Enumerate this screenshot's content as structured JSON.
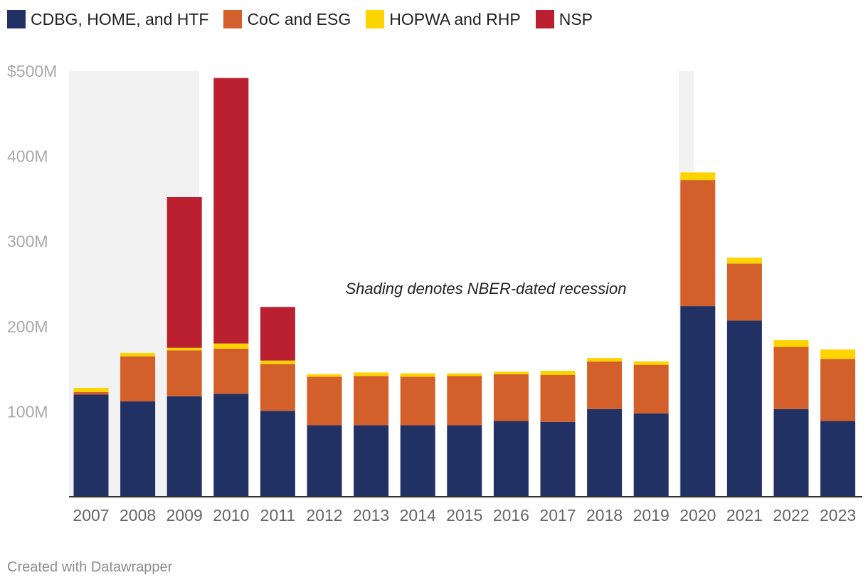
{
  "chart_data": {
    "type": "bar",
    "stacked": true,
    "categories": [
      "2007",
      "2008",
      "2009",
      "2010",
      "2011",
      "2012",
      "2013",
      "2014",
      "2015",
      "2016",
      "2017",
      "2018",
      "2019",
      "2020",
      "2021",
      "2022",
      "2023"
    ],
    "series": [
      {
        "name": "CDBG, HOME, and HTF",
        "color": "#223163",
        "values": [
          120,
          112,
          118,
          121,
          101,
          84,
          84,
          84,
          84,
          89,
          88,
          103,
          98,
          224,
          207,
          103,
          89
        ]
      },
      {
        "name": "CoC and ESG",
        "color": "#d3602a",
        "values": [
          3,
          53,
          54,
          53,
          55,
          57,
          58,
          57,
          58,
          55,
          55,
          56,
          57,
          148,
          67,
          73,
          73
        ]
      },
      {
        "name": "HOPWA and RHP",
        "color": "#fdd400",
        "values": [
          5,
          4,
          3,
          6,
          4,
          3,
          4,
          4,
          3,
          3,
          5,
          4,
          4,
          9,
          7,
          8,
          11
        ]
      },
      {
        "name": "NSP",
        "color": "#bb2031",
        "values": [
          0,
          0,
          177,
          312,
          63,
          0,
          0,
          0,
          0,
          0,
          0,
          0,
          0,
          0,
          0,
          0,
          0
        ]
      }
    ],
    "ylim": [
      0,
      500
    ],
    "yticks": [
      {
        "value": 100,
        "label": "100M"
      },
      {
        "value": 200,
        "label": "200M"
      },
      {
        "value": 300,
        "label": "300M"
      },
      {
        "value": 400,
        "label": "400M"
      },
      {
        "value": 500,
        "label": "$500M"
      }
    ],
    "shaded_ranges": [
      {
        "from": "2007",
        "to": "2009",
        "label": "recession"
      },
      {
        "from": "2020",
        "to": "2020",
        "label": "recession"
      }
    ],
    "annotation": "Shading denotes NBER-dated recession",
    "xlabel": "",
    "ylabel": ""
  },
  "legend": [
    {
      "label": "CDBG, HOME, and HTF",
      "color": "#223163"
    },
    {
      "label": "CoC and ESG",
      "color": "#d3602a"
    },
    {
      "label": "HOPWA and RHP",
      "color": "#fdd400"
    },
    {
      "label": "NSP",
      "color": "#bb2031"
    }
  ],
  "footer": "Created with Datawrapper"
}
